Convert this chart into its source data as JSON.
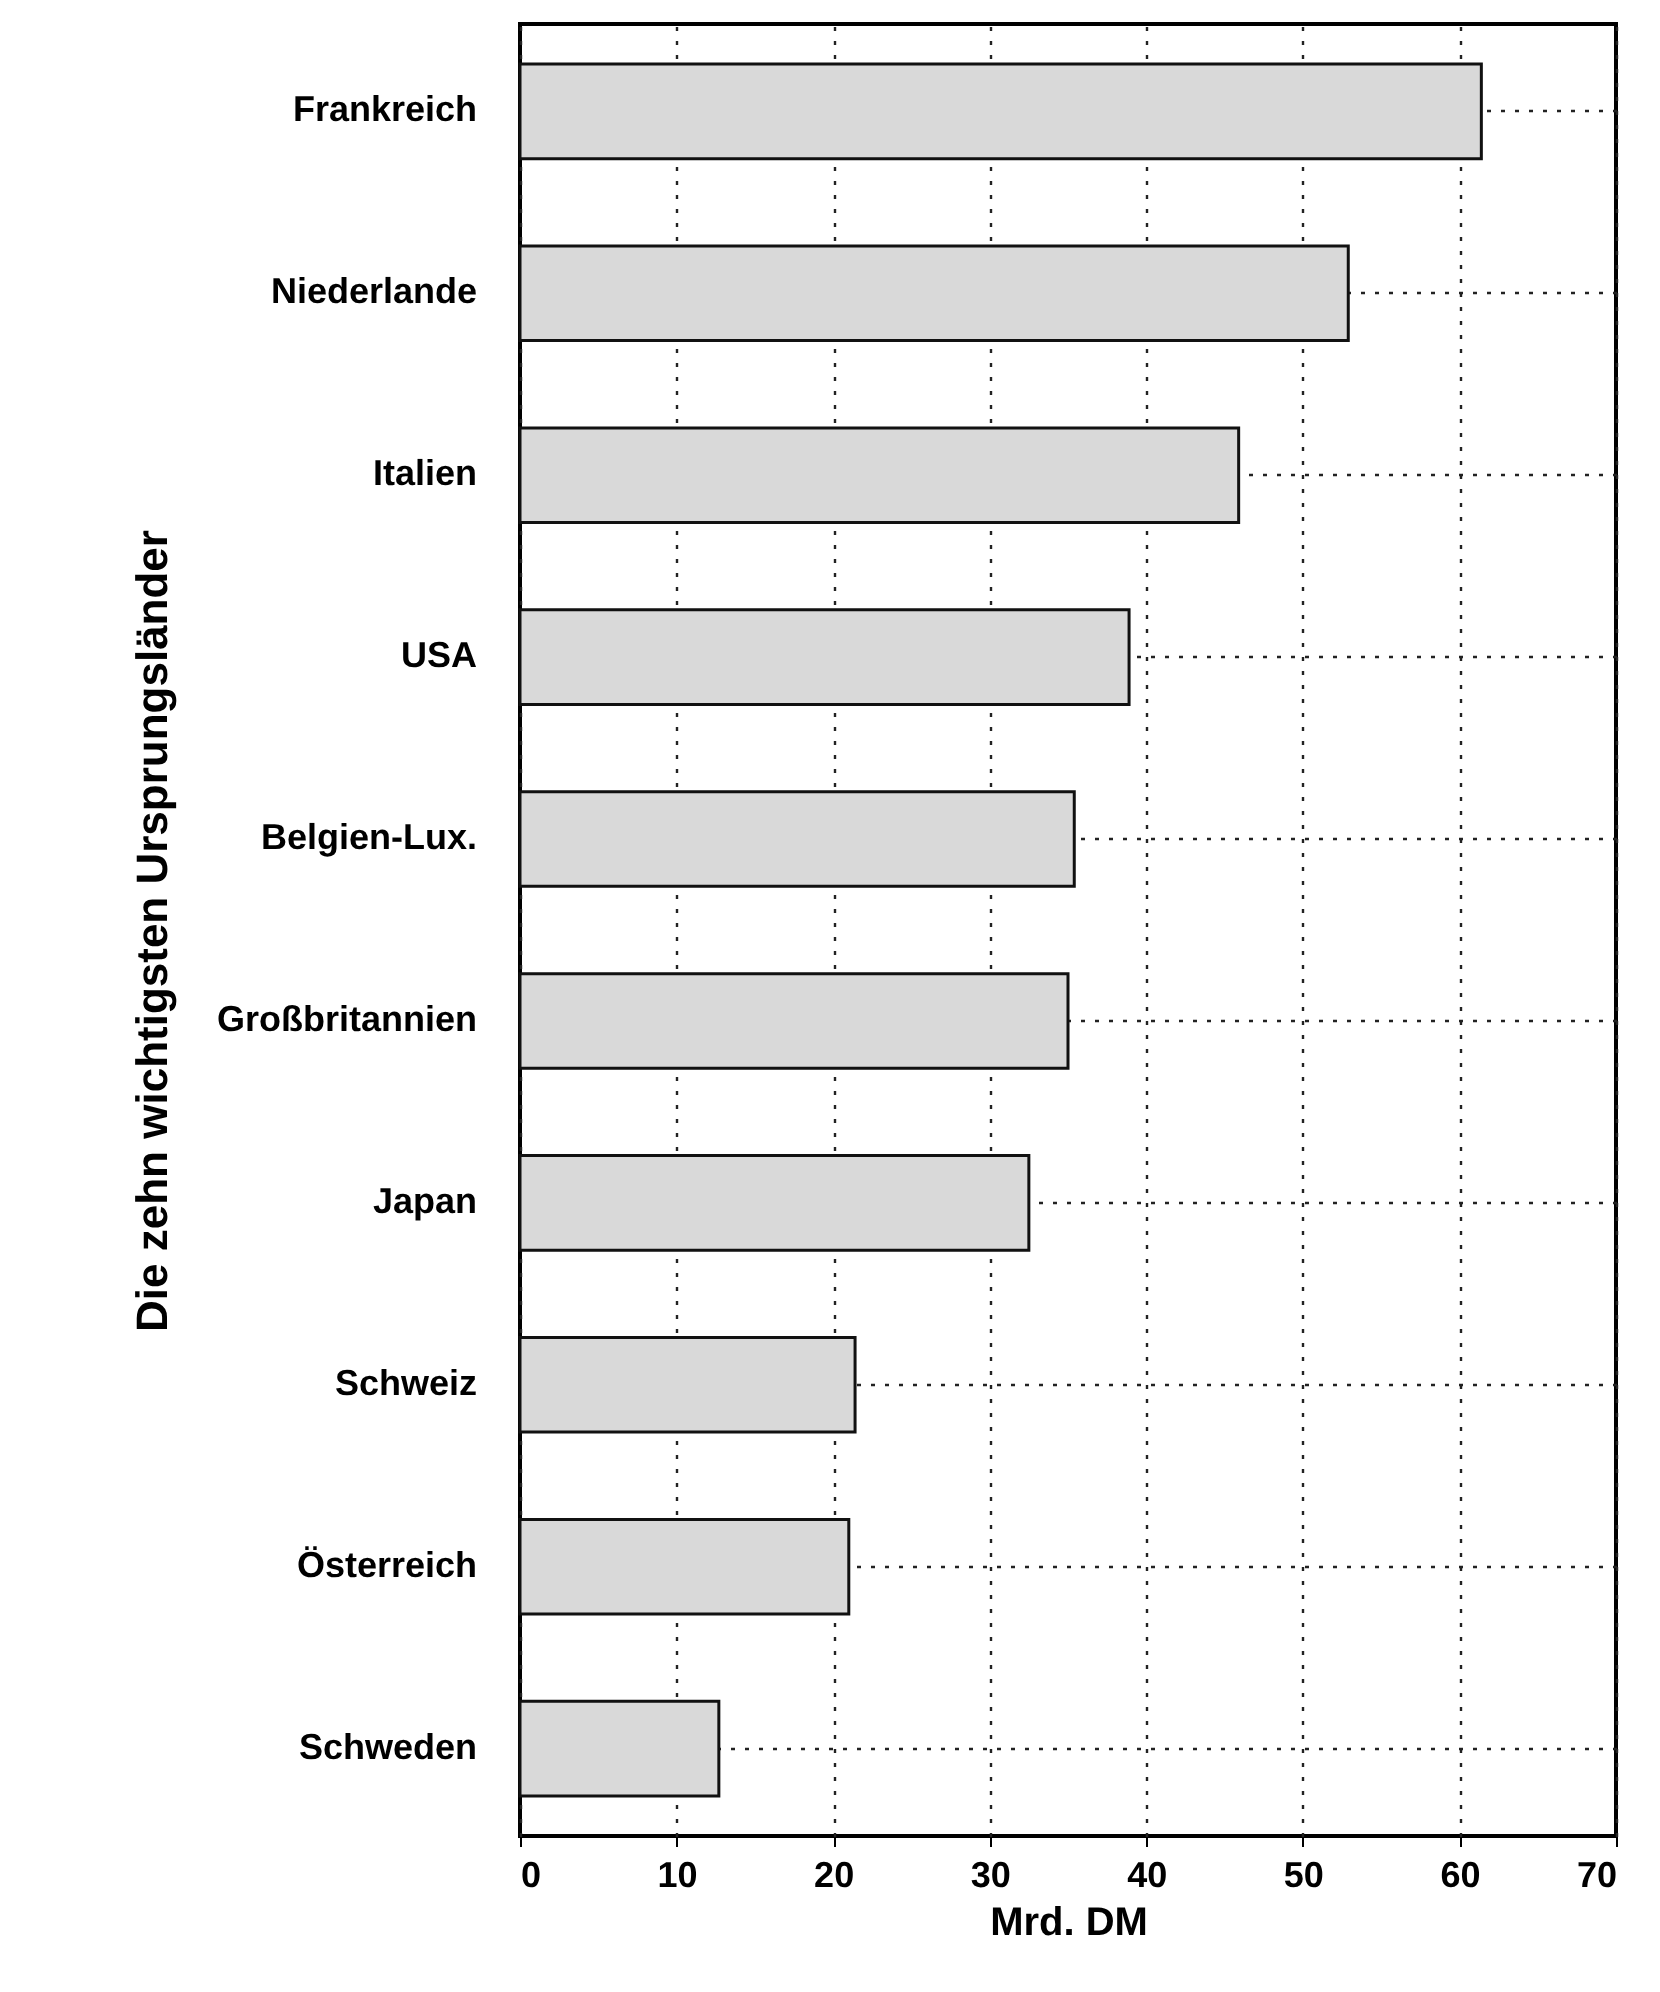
{
  "chart_data": {
    "type": "bar",
    "orientation": "horizontal",
    "ylabel": "Die zehn wichtigsten Ursprungsländer",
    "xlabel": "Mrd. DM",
    "categories": [
      "Frankreich",
      "Niederlande",
      "Italien",
      "USA",
      "Belgien-Lux.",
      "Großbritannien",
      "Japan",
      "Schweiz",
      "Österreich",
      "Schweden"
    ],
    "values": [
      61.4,
      52.9,
      45.9,
      38.9,
      35.4,
      35.0,
      32.5,
      21.4,
      21.0,
      12.7
    ],
    "color": "#d9d9d9",
    "xlim": [
      0,
      70
    ],
    "xticks": [
      0,
      10,
      20,
      30,
      40,
      50,
      60,
      70
    ],
    "grid": true
  }
}
